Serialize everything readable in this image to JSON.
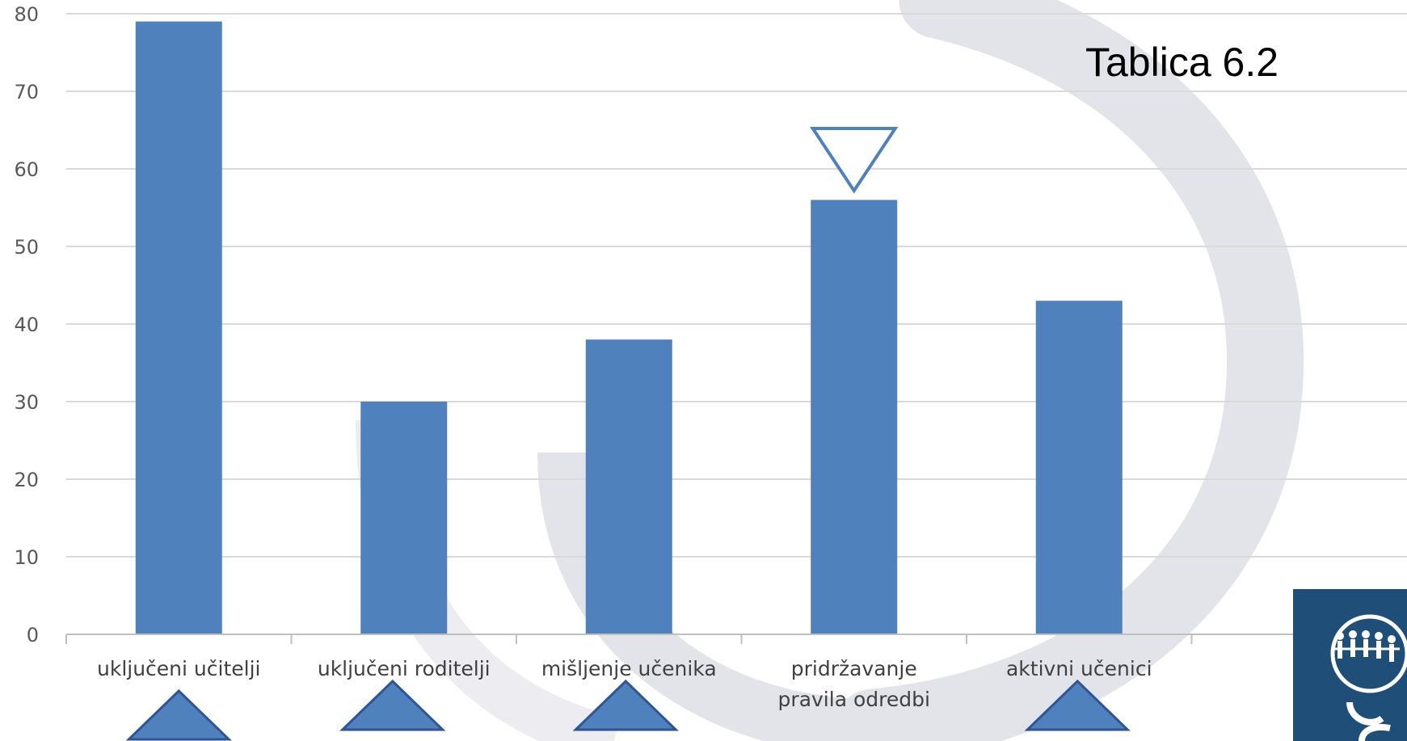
{
  "table_label": "Tablica 6.2",
  "colors": {
    "bar": "#4f81bd",
    "bar_edge": "#2f5597",
    "gridline": "#d9d9d9",
    "axis": "#bfbfbf",
    "watermark": "#e3e3ea",
    "logo_bg": "#1f4e79"
  },
  "chart_data": {
    "type": "bar",
    "title": "",
    "xlabel": "",
    "ylabel": "",
    "ylim": [
      0,
      80
    ],
    "yticks": [
      0,
      10,
      20,
      30,
      40,
      50,
      60,
      70,
      80
    ],
    "grid": true,
    "categories": [
      [
        "uključeni učitelji"
      ],
      [
        "uključeni roditelji"
      ],
      [
        "mišljenje učenika"
      ],
      [
        "pridržavanje",
        "pravila odredbi"
      ],
      [
        "aktivni učenici"
      ]
    ],
    "values": [
      79,
      30,
      38,
      56,
      43
    ],
    "annotations": [
      {
        "category": 0,
        "marker": "triangle-up-filled"
      },
      {
        "category": 1,
        "marker": "triangle-up-filled"
      },
      {
        "category": 2,
        "marker": "triangle-up-filled"
      },
      {
        "category": 3,
        "marker": "triangle-down-outline"
      },
      {
        "category": 4,
        "marker": "triangle-up-filled"
      }
    ]
  },
  "logo": {
    "icon": "people-circle-logo"
  }
}
